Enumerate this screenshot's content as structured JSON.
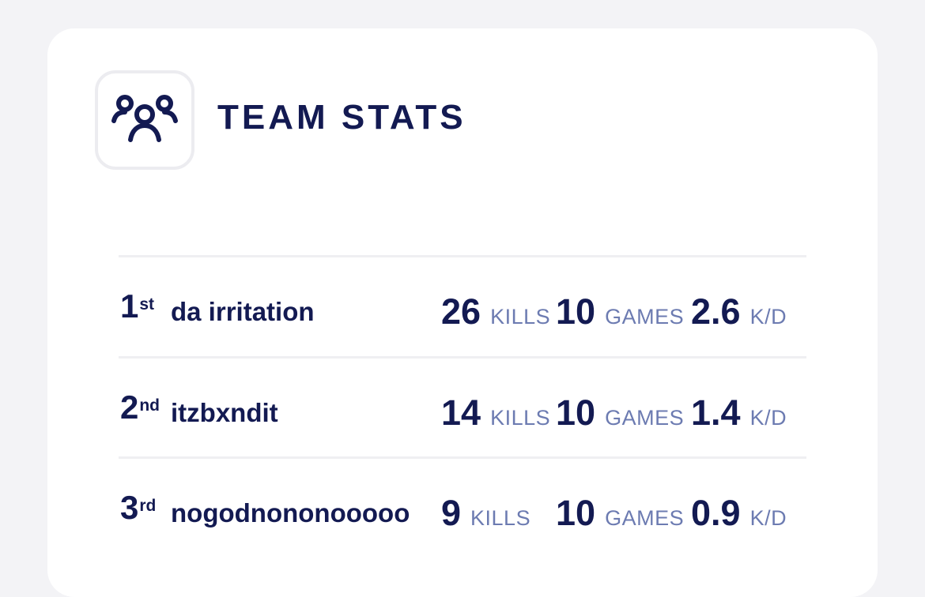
{
  "header": {
    "title": "TEAM STATS",
    "icon": "team-users-icon"
  },
  "colors": {
    "primary": "#131a52",
    "muted_unit": "#6c7bb1",
    "page_bg": "#f3f3f6",
    "card_bg": "#ffffff",
    "divider": "#efeff2"
  },
  "rows": [
    {
      "rank_num": "1",
      "rank_suffix": "st",
      "name": "da irritation",
      "kills": "26",
      "kills_label": "KILLS",
      "games": "10",
      "games_label": "GAMES",
      "kd": "2.6",
      "kd_label": "K/D"
    },
    {
      "rank_num": "2",
      "rank_suffix": "nd",
      "name": "itzbxndit",
      "kills": "14",
      "kills_label": "KILLS",
      "games": "10",
      "games_label": "GAMES",
      "kd": "1.4",
      "kd_label": "K/D"
    },
    {
      "rank_num": "3",
      "rank_suffix": "rd",
      "name": "nogodnononooooo",
      "kills": "9",
      "kills_label": "KILLS",
      "games": "10",
      "games_label": "GAMES",
      "kd": "0.9",
      "kd_label": "K/D"
    }
  ]
}
